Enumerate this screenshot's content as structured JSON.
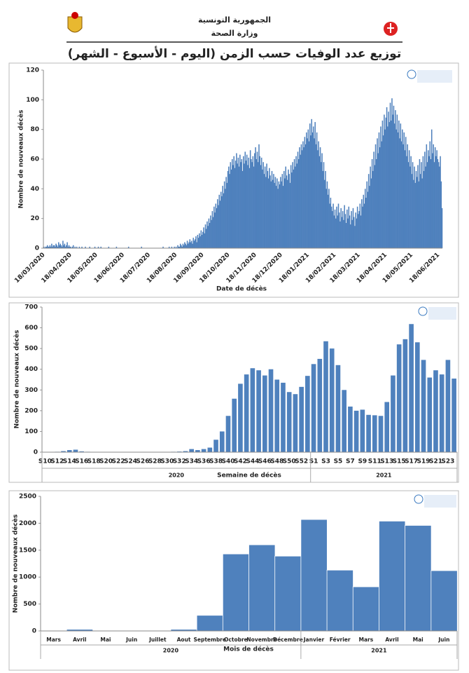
{
  "header": {
    "country": "الجمهورية التونسية",
    "ministry": "وزارة الصحة",
    "title": "توزيع عدد الوفيات حسب الزمن (اليوم - الأسبوع - الشهر)"
  },
  "chart_data": [
    {
      "type": "bar",
      "x_label": "Date de décès",
      "y_label": "Nombre de nouveaux décès",
      "color": "#4f81bd",
      "ylim": [
        0,
        120
      ],
      "yticks": [
        0,
        20,
        40,
        60,
        80,
        100,
        120
      ],
      "categories": [
        "18/03/2020",
        null,
        null,
        null,
        null,
        null,
        null,
        null,
        null,
        null,
        null,
        null,
        null,
        null,
        null,
        null,
        null,
        null,
        null,
        null,
        null,
        null,
        null,
        null,
        null,
        null,
        null,
        null,
        null,
        null,
        null,
        "18/04/2020",
        null,
        null,
        null,
        null,
        null,
        null,
        null,
        null,
        null,
        null,
        null,
        null,
        null,
        null,
        null,
        null,
        null,
        null,
        null,
        null,
        null,
        null,
        null,
        null,
        null,
        null,
        null,
        null,
        null,
        "18/05/2020",
        null,
        null,
        null,
        null,
        null,
        null,
        null,
        null,
        null,
        null,
        null,
        null,
        null,
        null,
        null,
        null,
        null,
        null,
        null,
        null,
        null,
        null,
        null,
        null,
        null,
        null,
        null,
        null,
        null,
        null,
        "18/06/2020",
        null,
        null,
        null,
        null,
        null,
        null,
        null,
        null,
        null,
        null,
        null,
        null,
        null,
        null,
        null,
        null,
        null,
        null,
        null,
        null,
        null,
        null,
        null,
        null,
        null,
        null,
        null,
        null,
        null,
        "18/07/2020",
        null,
        null,
        null,
        null,
        null,
        null,
        null,
        null,
        null,
        null,
        null,
        null,
        null,
        null,
        null,
        null,
        null,
        null,
        null,
        null,
        null,
        null,
        null,
        null,
        null,
        null,
        null,
        null,
        null,
        null,
        "18/08/2020",
        null,
        null,
        null,
        null,
        null,
        null,
        null,
        null,
        null,
        null,
        null,
        null,
        null,
        null,
        null,
        null,
        null,
        null,
        null,
        null,
        null,
        null,
        null,
        null,
        null,
        null,
        null,
        null,
        null,
        null,
        "18/09/2020",
        null,
        null,
        null,
        null,
        null,
        null,
        null,
        null,
        null,
        null,
        null,
        null,
        null,
        null,
        null,
        null,
        null,
        null,
        null,
        null,
        null,
        null,
        null,
        null,
        null,
        null,
        null,
        null,
        null,
        "18/10/2020",
        null,
        null,
        null,
        null,
        null,
        null,
        null,
        null,
        null,
        null,
        null,
        null,
        null,
        null,
        null,
        null,
        null,
        null,
        null,
        null,
        null,
        null,
        null,
        null,
        null,
        null,
        null,
        null,
        null,
        null,
        "18/11/2020",
        null,
        null,
        null,
        null,
        null,
        null,
        null,
        null,
        null,
        null,
        null,
        null,
        null,
        null,
        null,
        null,
        null,
        null,
        null,
        null,
        null,
        null,
        null,
        null,
        null,
        null,
        null,
        null,
        null,
        "18/12/2020",
        null,
        null,
        null,
        null,
        null,
        null,
        null,
        null,
        null,
        null,
        null,
        null,
        null,
        null,
        null,
        null,
        null,
        null,
        null,
        null,
        null,
        null,
        null,
        null,
        null,
        null,
        null,
        null,
        null,
        null,
        "18/01/2021",
        null,
        null,
        null,
        null,
        null,
        null,
        null,
        null,
        null,
        null,
        null,
        null,
        null,
        null,
        null,
        null,
        null,
        null,
        null,
        null,
        null,
        null,
        null,
        null,
        null,
        null,
        null,
        null,
        null,
        null,
        "18/02/2021",
        null,
        null,
        null,
        null,
        null,
        null,
        null,
        null,
        null,
        null,
        null,
        null,
        null,
        null,
        null,
        null,
        null,
        null,
        null,
        null,
        null,
        null,
        null,
        null,
        null,
        null,
        null,
        "18/03/2021",
        null,
        null,
        null,
        null,
        null,
        null,
        null,
        null,
        null,
        null,
        null,
        null,
        null,
        null,
        null,
        null,
        null,
        null,
        null,
        null,
        null,
        null,
        null,
        null,
        null,
        null,
        null,
        null,
        null,
        null,
        "18/04/2021",
        null,
        null,
        null,
        null,
        null,
        null,
        null,
        null,
        null,
        null,
        null,
        null,
        null,
        null,
        null,
        null,
        null,
        null,
        null,
        null,
        null,
        null,
        null,
        null,
        null,
        null,
        null,
        null,
        null,
        "18/05/2021",
        null,
        null,
        null,
        null,
        null,
        null,
        null,
        null,
        null,
        null,
        null,
        null,
        null,
        null,
        null,
        null,
        null,
        null,
        null,
        null,
        null,
        null,
        null,
        null,
        null,
        null,
        null,
        null,
        null,
        null,
        "18/06/2021",
        null,
        null,
        null,
        null
      ],
      "values": [
        1,
        0,
        1,
        1,
        2,
        1,
        1,
        2,
        1,
        3,
        1,
        2,
        2,
        1,
        3,
        2,
        1,
        4,
        2,
        3,
        2,
        1,
        5,
        2,
        3,
        1,
        2,
        4,
        1,
        2,
        1,
        1,
        0,
        1,
        2,
        0,
        1,
        0,
        1,
        0,
        0,
        1,
        0,
        0,
        1,
        0,
        0,
        0,
        1,
        0,
        0,
        0,
        0,
        1,
        0,
        0,
        0,
        0,
        0,
        1,
        0,
        0,
        0,
        1,
        0,
        0,
        1,
        0,
        0,
        0,
        0,
        0,
        0,
        0,
        0,
        1,
        0,
        0,
        0,
        0,
        0,
        0,
        0,
        0,
        1,
        0,
        0,
        0,
        0,
        0,
        0,
        0,
        0,
        0,
        0,
        0,
        0,
        0,
        1,
        0,
        0,
        0,
        0,
        0,
        0,
        0,
        0,
        0,
        0,
        0,
        0,
        0,
        0,
        1,
        0,
        0,
        0,
        0,
        0,
        0,
        0,
        0,
        0,
        0,
        0,
        0,
        0,
        0,
        0,
        0,
        0,
        0,
        0,
        0,
        0,
        0,
        0,
        0,
        1,
        0,
        0,
        0,
        0,
        0,
        0,
        1,
        0,
        0,
        1,
        0,
        0,
        1,
        0,
        1,
        0,
        2,
        1,
        1,
        3,
        2,
        1,
        3,
        2,
        4,
        3,
        2,
        5,
        3,
        4,
        6,
        4,
        5,
        3,
        7,
        5,
        6,
        8,
        4,
        9,
        7,
        10,
        8,
        12,
        9,
        11,
        14,
        10,
        16,
        13,
        18,
        15,
        20,
        17,
        22,
        19,
        25,
        21,
        28,
        24,
        30,
        27,
        33,
        29,
        36,
        32,
        38,
        35,
        42,
        37,
        45,
        40,
        48,
        44,
        52,
        55,
        50,
        58,
        53,
        60,
        56,
        62,
        54,
        59,
        64,
        57,
        61,
        55,
        63,
        58,
        60,
        52,
        62,
        57,
        65,
        59,
        63,
        56,
        61,
        54,
        66,
        60,
        58,
        62,
        55,
        64,
        68,
        60,
        65,
        58,
        70,
        62,
        56,
        61,
        53,
        58,
        50,
        55,
        48,
        57,
        52,
        47,
        54,
        49,
        45,
        52,
        46,
        50,
        44,
        48,
        42,
        47,
        40,
        45,
        43,
        48,
        45,
        50,
        42,
        52,
        47,
        55,
        49,
        46,
        53,
        50,
        44,
        56,
        51,
        58,
        53,
        60,
        55,
        62,
        57,
        65,
        60,
        68,
        63,
        70,
        66,
        72,
        68,
        75,
        70,
        78,
        74,
        80,
        72,
        84,
        76,
        87,
        78,
        82,
        74,
        85,
        70,
        78,
        66,
        72,
        62,
        68,
        58,
        64,
        52,
        58,
        46,
        52,
        40,
        45,
        36,
        40,
        30,
        34,
        28,
        25,
        30,
        22,
        26,
        20,
        28,
        22,
        30,
        24,
        18,
        27,
        21,
        25,
        19,
        29,
        23,
        17,
        26,
        20,
        28,
        22,
        16,
        25,
        19,
        27,
        21,
        15,
        24,
        20,
        28,
        23,
        25,
        30,
        22,
        33,
        28,
        36,
        30,
        40,
        34,
        45,
        38,
        50,
        42,
        55,
        47,
        60,
        52,
        65,
        56,
        70,
        60,
        74,
        64,
        78,
        68,
        82,
        72,
        86,
        76,
        90,
        80,
        88,
        95,
        82,
        92,
        85,
        98,
        86,
        101,
        90,
        96,
        84,
        93,
        80,
        90,
        78,
        86,
        74,
        84,
        72,
        80,
        70,
        78,
        66,
        75,
        62,
        70,
        58,
        66,
        55,
        62,
        50,
        58,
        46,
        55,
        44,
        52,
        48,
        56,
        45,
        60,
        50,
        58,
        47,
        62,
        52,
        65,
        55,
        70,
        58,
        66,
        62,
        72,
        60,
        80,
        64,
        70,
        58,
        68,
        62,
        66,
        60,
        58,
        55,
        62,
        45,
        27
      ]
    },
    {
      "type": "bar",
      "x_label": "Semaine de décès",
      "y_label": "Nombre de nouveaux décès",
      "color": "#4f81bd",
      "ylim": [
        0,
        700
      ],
      "yticks": [
        0,
        100,
        200,
        300,
        400,
        500,
        600,
        700
      ],
      "group_labels": [
        "2020",
        "2021"
      ],
      "categories": [
        "S10",
        null,
        "S12",
        null,
        "S14",
        null,
        "S16",
        null,
        "S18",
        null,
        "S20",
        null,
        "S22",
        null,
        "S24",
        null,
        "S26",
        null,
        "S28",
        null,
        "S30",
        null,
        "S32",
        null,
        "S34",
        null,
        "S36",
        null,
        "S38",
        null,
        "S40",
        null,
        "S42",
        null,
        "S44",
        null,
        "S46",
        null,
        "S48",
        null,
        "S50",
        null,
        "S52",
        null,
        "S1",
        null,
        "S3",
        null,
        "S5",
        null,
        "S7",
        null,
        "S9",
        null,
        "S11",
        null,
        "S13",
        null,
        "S15",
        null,
        "S17",
        null,
        "S19",
        null,
        "S21",
        null,
        "S23",
        null
      ],
      "values": [
        0,
        1,
        2,
        5,
        10,
        12,
        4,
        2,
        1,
        1,
        0,
        0,
        0,
        0,
        1,
        0,
        0,
        1,
        1,
        0,
        1,
        2,
        3,
        5,
        15,
        10,
        15,
        22,
        60,
        100,
        175,
        258,
        330,
        375,
        405,
        395,
        370,
        400,
        350,
        335,
        290,
        280,
        315,
        368,
        425,
        450,
        535,
        500,
        420,
        300,
        220,
        200,
        205,
        180,
        178,
        175,
        242,
        370,
        520,
        545,
        618,
        530,
        445,
        360,
        395,
        375,
        445,
        355
      ]
    },
    {
      "type": "bar",
      "x_label": "Mois de décès",
      "y_label": "Nombre de nouveaux décès",
      "color": "#4f81bd",
      "ylim": [
        0,
        2500
      ],
      "yticks": [
        0,
        500,
        1000,
        1500,
        2000,
        2500
      ],
      "group_labels": [
        "2020",
        "2021"
      ],
      "categories": [
        "Mars",
        "Avril",
        "Mai",
        "Juin",
        "Juillet",
        "Aout",
        "Septembre",
        "Octobre",
        "Novembre",
        "Décembre",
        "Janvier",
        "Février",
        "Mars",
        "Avril",
        "Mai",
        "Juin"
      ],
      "values": [
        10,
        30,
        0,
        0,
        0,
        30,
        290,
        1430,
        1600,
        1390,
        2070,
        1130,
        820,
        2040,
        1960,
        1120
      ]
    }
  ]
}
